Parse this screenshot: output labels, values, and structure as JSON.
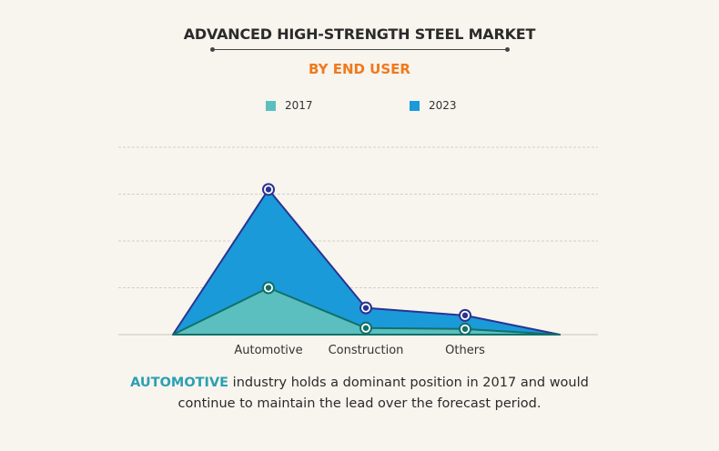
{
  "header": {
    "title": "ADVANCED HIGH-STRENGTH STEEL MARKET",
    "subtitle": "BY END USER"
  },
  "colors": {
    "series_2017_fill": "#5bbfc0",
    "series_2017_line": "#117169",
    "series_2023_fill": "#1a9ad9",
    "series_2023_line": "#2a3391",
    "subtitle": "#f07a1c",
    "highlight": "#2aa0b3",
    "background": "#f8f4ee"
  },
  "caption": {
    "highlight": "AUTOMOTIVE",
    "line1_rest": " industry holds a dominant position in 2017 and would",
    "line2": "continue to maintain the lead over the forecast period."
  },
  "chart_data": {
    "type": "area",
    "title": "ADVANCED HIGH-STRENGTH STEEL MARKET",
    "subtitle": "BY END USER",
    "categories": [
      "Automotive",
      "Construction",
      "Others"
    ],
    "series": [
      {
        "name": "2017",
        "values": [
          1.0,
          0.14,
          0.12
        ]
      },
      {
        "name": "2023",
        "values": [
          3.1,
          0.57,
          0.41
        ]
      }
    ],
    "xlabel": "",
    "ylabel": "",
    "ylim": [
      0,
      4
    ],
    "grid": true,
    "legend": "top-center",
    "units": "relative (unlabeled axis)"
  }
}
